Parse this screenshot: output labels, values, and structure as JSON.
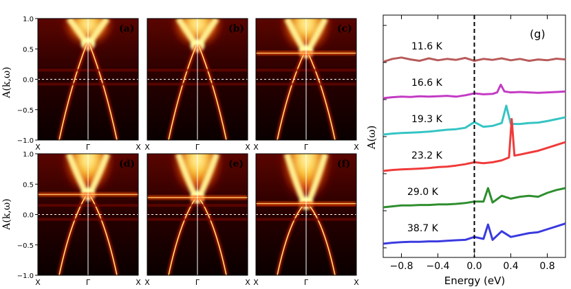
{
  "figure": {
    "panels": [
      {
        "label": "(a)",
        "flat_band_energy": null,
        "cone_top": 0.58
      },
      {
        "label": "(b)",
        "flat_band_energy": null,
        "cone_top": 0.55
      },
      {
        "label": "(c)",
        "flat_band_energy": 0.43,
        "cone_top": 0.45
      },
      {
        "label": "(d)",
        "flat_band_energy": 0.33,
        "cone_top": 0.33
      },
      {
        "label": "(e)",
        "flat_band_energy": 0.28,
        "cone_top": 0.28
      },
      {
        "label": "(f)",
        "flat_band_energy": 0.18,
        "cone_top": 0.18
      }
    ],
    "panel_axes": {
      "ylabel": "A(k,ω)",
      "y_ticks": [
        "1.0",
        "0.5",
        "0.0",
        "−0.5",
        "−1.0"
      ],
      "x_ticks": [
        "X",
        "Γ",
        "X"
      ],
      "ylim": [
        -1.0,
        1.0
      ]
    },
    "colors": {
      "map_dark": "#000000",
      "map_mid": "#b10000",
      "map_bright": "#ffff80"
    }
  },
  "chart_data": {
    "type": "line",
    "panel_label": "(g)",
    "xlabel": "Energy (eV)",
    "ylabel": "A(ω)",
    "xlim": [
      -1.0,
      1.0
    ],
    "x_ticks": [
      "−0.8",
      "−0.4",
      "0.0",
      "0.4",
      "0.8"
    ],
    "zero_line": true,
    "series": [
      {
        "name": "11.6 K",
        "color": "#b85a5a",
        "offset": 5,
        "peak": null,
        "x": [
          -1.0,
          -0.9,
          -0.8,
          -0.7,
          -0.6,
          -0.5,
          -0.4,
          -0.3,
          -0.2,
          -0.1,
          0.0,
          0.1,
          0.2,
          0.3,
          0.4,
          0.5,
          0.6,
          0.7,
          0.8,
          0.9,
          1.0
        ],
        "y": [
          0.0,
          0.15,
          0.22,
          0.12,
          0.05,
          0.18,
          0.08,
          0.15,
          0.1,
          0.2,
          0.05,
          0.15,
          0.1,
          0.18,
          0.08,
          0.15,
          0.05,
          0.12,
          0.08,
          0.16,
          0.12
        ]
      },
      {
        "name": "16.6 K",
        "color": "#c43ac4",
        "offset": 4,
        "peak": 0.29,
        "x": [
          -1.0,
          -0.9,
          -0.8,
          -0.7,
          -0.6,
          -0.5,
          -0.4,
          -0.3,
          -0.2,
          -0.1,
          0.0,
          0.1,
          0.2,
          0.25,
          0.29,
          0.33,
          0.4,
          0.5,
          0.6,
          0.7,
          0.8,
          0.9,
          1.0
        ],
        "y": [
          0.0,
          0.05,
          0.08,
          0.06,
          0.1,
          0.08,
          0.1,
          0.12,
          0.08,
          0.15,
          0.25,
          0.2,
          0.22,
          0.3,
          0.7,
          0.35,
          0.3,
          0.32,
          0.3,
          0.28,
          0.3,
          0.32,
          0.35
        ]
      },
      {
        "name": "19.3 K",
        "color": "#35c4c4",
        "offset": 3,
        "peak": 0.35,
        "x": [
          -1.0,
          -0.9,
          -0.8,
          -0.7,
          -0.6,
          -0.5,
          -0.4,
          -0.3,
          -0.2,
          -0.1,
          0.0,
          0.1,
          0.2,
          0.3,
          0.35,
          0.4,
          0.5,
          0.6,
          0.7,
          0.8,
          0.9,
          1.0
        ],
        "y": [
          0.0,
          0.05,
          0.08,
          0.1,
          0.12,
          0.15,
          0.2,
          0.25,
          0.28,
          0.35,
          0.65,
          0.4,
          0.45,
          0.6,
          1.5,
          0.55,
          0.55,
          0.6,
          0.62,
          0.7,
          0.8,
          0.9
        ]
      },
      {
        "name": "23.2 K",
        "color": "#f03a3a",
        "offset": 2,
        "peak": 0.41,
        "x": [
          -1.0,
          -0.9,
          -0.8,
          -0.7,
          -0.6,
          -0.5,
          -0.4,
          -0.3,
          -0.2,
          -0.1,
          0.0,
          0.1,
          0.2,
          0.3,
          0.38,
          0.41,
          0.44,
          0.5,
          0.6,
          0.7,
          0.8,
          0.9,
          1.0
        ],
        "y": [
          0.0,
          0.05,
          0.08,
          0.1,
          0.12,
          0.15,
          0.2,
          0.22,
          0.28,
          0.35,
          0.45,
          0.4,
          0.45,
          0.55,
          0.7,
          2.7,
          0.8,
          0.85,
          0.95,
          1.05,
          1.2,
          1.35,
          1.5
        ]
      },
      {
        "name": "29.0 K",
        "color": "#2e8e2e",
        "offset": 1,
        "peak": 0.15,
        "x": [
          -1.0,
          -0.9,
          -0.8,
          -0.7,
          -0.6,
          -0.5,
          -0.4,
          -0.3,
          -0.2,
          -0.1,
          0.0,
          0.1,
          0.15,
          0.2,
          0.3,
          0.4,
          0.5,
          0.6,
          0.7,
          0.8,
          0.9,
          1.0
        ],
        "y": [
          0.0,
          0.05,
          0.1,
          0.1,
          0.12,
          0.12,
          0.15,
          0.15,
          0.18,
          0.22,
          0.3,
          0.3,
          1.0,
          0.25,
          0.6,
          0.45,
          0.55,
          0.6,
          0.55,
          0.75,
          0.9,
          1.0
        ]
      },
      {
        "name": "38.7 K",
        "color": "#3a3ae0",
        "offset": 0,
        "peak": 0.15,
        "x": [
          -1.0,
          -0.9,
          -0.8,
          -0.7,
          -0.6,
          -0.5,
          -0.4,
          -0.3,
          -0.2,
          -0.1,
          0.0,
          0.1,
          0.15,
          0.2,
          0.3,
          0.4,
          0.5,
          0.6,
          0.7,
          0.8,
          0.9,
          1.0
        ],
        "y": [
          0.0,
          0.05,
          0.08,
          0.1,
          0.1,
          0.12,
          0.12,
          0.15,
          0.18,
          0.2,
          0.35,
          0.25,
          1.0,
          0.2,
          0.65,
          0.35,
          0.45,
          0.55,
          0.6,
          0.75,
          0.9,
          1.05
        ]
      }
    ]
  }
}
